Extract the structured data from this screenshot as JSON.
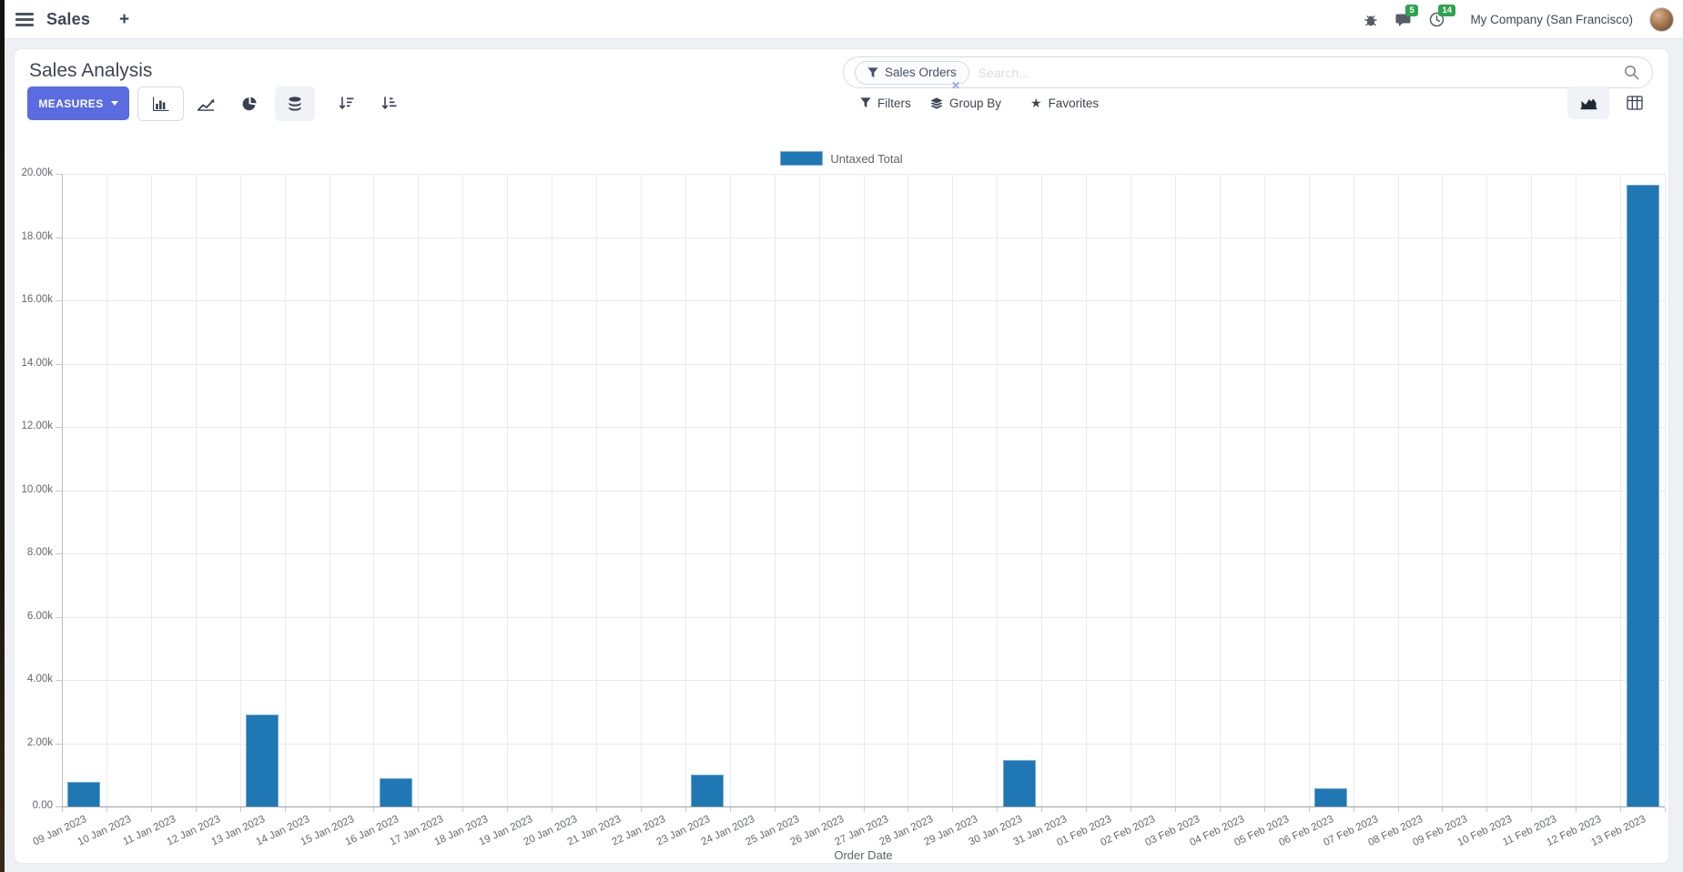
{
  "navbar": {
    "app_name": "Sales",
    "plus_label": "+",
    "messages_badge": "5",
    "activities_badge": "14",
    "company": "My Company (San Francisco)"
  },
  "control_panel": {
    "title": "Sales Analysis",
    "measures_label": "MEASURES",
    "search": {
      "facet_label": "Sales Orders",
      "facet_remove": "✕",
      "placeholder": "Search..."
    },
    "filters_label": "Filters",
    "group_by_label": "Group By",
    "favorites_label": "Favorites"
  },
  "chart_data": {
    "type": "bar",
    "title": "",
    "legend_position": "top",
    "xlabel": "Order Date",
    "ylabel": "",
    "ylim": [
      0,
      20000
    ],
    "grid": true,
    "y_tick_labels": [
      "20.00k",
      "18.00k",
      "16.00k",
      "14.00k",
      "12.00k",
      "10.00k",
      "8.00k",
      "6.00k",
      "4.00k",
      "2.00k",
      "0.00"
    ],
    "categories": [
      "09 Jan 2023",
      "10 Jan 2023",
      "11 Jan 2023",
      "12 Jan 2023",
      "13 Jan 2023",
      "14 Jan 2023",
      "15 Jan 2023",
      "16 Jan 2023",
      "17 Jan 2023",
      "18 Jan 2023",
      "19 Jan 2023",
      "20 Jan 2023",
      "21 Jan 2023",
      "22 Jan 2023",
      "23 Jan 2023",
      "24 Jan 2023",
      "25 Jan 2023",
      "26 Jan 2023",
      "27 Jan 2023",
      "28 Jan 2023",
      "29 Jan 2023",
      "30 Jan 2023",
      "31 Jan 2023",
      "01 Feb 2023",
      "02 Feb 2023",
      "03 Feb 2023",
      "04 Feb 2023",
      "05 Feb 2023",
      "06 Feb 2023",
      "07 Feb 2023",
      "08 Feb 2023",
      "09 Feb 2023",
      "10 Feb 2023",
      "11 Feb 2023",
      "12 Feb 2023",
      "13 Feb 2023"
    ],
    "series": [
      {
        "name": "Untaxed Total",
        "color": "#1f77b4",
        "values": [
          790,
          0,
          0,
          0,
          2900,
          0,
          0,
          890,
          0,
          0,
          0,
          0,
          0,
          0,
          1010,
          0,
          0,
          0,
          0,
          0,
          0,
          1470,
          0,
          0,
          0,
          0,
          0,
          0,
          580,
          0,
          0,
          0,
          0,
          0,
          0,
          19660
        ]
      }
    ]
  },
  "colors": {
    "accent": "#5a6ce0",
    "bar": "#1f77b4",
    "badge_green": "#2ea44f",
    "page_bg": "#eff0f5"
  }
}
